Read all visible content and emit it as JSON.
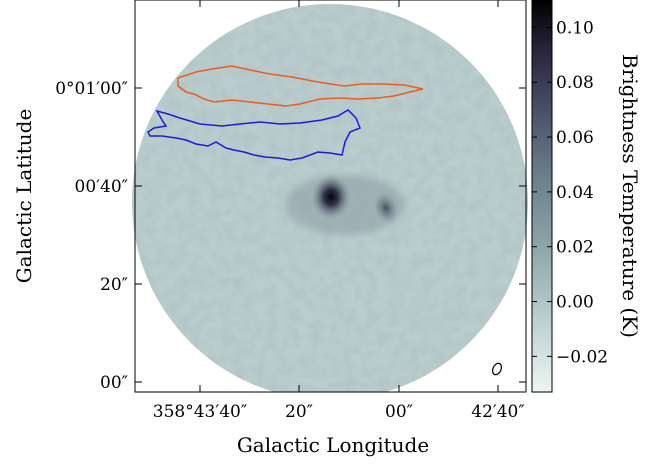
{
  "figure": {
    "xlabel": "Galactic Longitude",
    "ylabel": "Galactic Latitude",
    "x_ticks": [
      "358°43′40″",
      "20″",
      "00″",
      "42′40″"
    ],
    "y_ticks": [
      "0°01′00″",
      "00′40″",
      "20″",
      "00″"
    ]
  },
  "colorbar": {
    "label": "Brightness Temperature (K)",
    "ticks": [
      "0.10",
      "0.08",
      "0.06",
      "0.04",
      "0.02",
      "0.00",
      "−0.02"
    ],
    "tick_values": [
      0.1,
      0.08,
      0.06,
      0.04,
      0.02,
      0.0,
      -0.02
    ],
    "range": [
      -0.033,
      0.11
    ],
    "colormap": [
      "#eef5f4",
      "#bcd1d0",
      "#8fa8aa",
      "#6a7f8a",
      "#4a4f6a",
      "#262238",
      "#000000"
    ]
  },
  "overlays": {
    "orange_contour_color": "#f05a1e",
    "blue_contour_color": "#1a1ae6",
    "beam_color": "#000000"
  },
  "colors": {
    "frame": "#000000",
    "background": "#ffffff"
  }
}
